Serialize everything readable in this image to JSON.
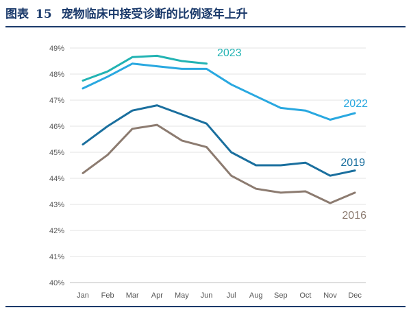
{
  "title": {
    "prefix": "图表",
    "number": "15",
    "text": "宠物临床中接受诊断的比例逐年上升"
  },
  "chart_data": {
    "type": "line",
    "title": "宠物临床中接受诊断的比例逐年上升",
    "categories": [
      "Jan",
      "Feb",
      "Mar",
      "Apr",
      "May",
      "Jun",
      "Jul",
      "Aug",
      "Sep",
      "Oct",
      "Nov",
      "Dec"
    ],
    "yticks": [
      "40%",
      "41%",
      "42%",
      "43%",
      "44%",
      "45%",
      "46%",
      "47%",
      "48%",
      "49%"
    ],
    "ylim": [
      40,
      49
    ],
    "grid": true,
    "series": [
      {
        "name": "2023",
        "color": "#22b3b3",
        "values": [
          47.75,
          48.1,
          48.65,
          48.7,
          48.5,
          48.4,
          null,
          null,
          null,
          null,
          null,
          null
        ]
      },
      {
        "name": "2022",
        "color": "#29a8e0",
        "values": [
          47.45,
          47.9,
          48.4,
          48.3,
          48.2,
          48.2,
          47.6,
          47.15,
          46.7,
          46.6,
          46.25,
          46.5
        ]
      },
      {
        "name": "2019",
        "color": "#1a6f9e",
        "values": [
          45.3,
          46.0,
          46.6,
          46.8,
          46.45,
          46.1,
          45.0,
          44.5,
          44.5,
          44.6,
          44.1,
          44.3
        ]
      },
      {
        "name": "2016",
        "color": "#8c7b70",
        "values": [
          44.2,
          44.9,
          45.9,
          46.05,
          45.45,
          45.2,
          44.1,
          43.6,
          43.45,
          43.5,
          43.05,
          43.45
        ]
      }
    ]
  }
}
